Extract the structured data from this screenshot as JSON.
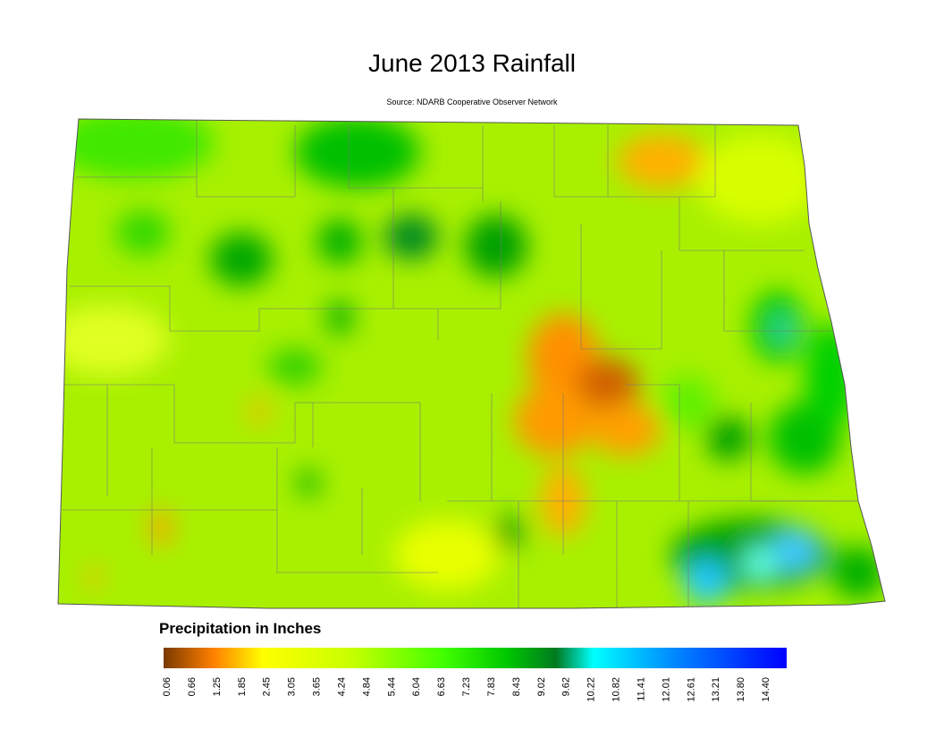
{
  "title": "June 2013 Rainfall",
  "subtitle": "Source: NDARB Cooperative Observer Network",
  "legend": {
    "title": "Precipitation in Inches",
    "ticks": [
      "0.06",
      "0.66",
      "1.25",
      "1.85",
      "2.45",
      "3.05",
      "3.65",
      "4.24",
      "4.84",
      "5.44",
      "6.04",
      "6.63",
      "7.23",
      "7.83",
      "8.43",
      "9.02",
      "9.62",
      "10.22",
      "10.82",
      "11.41",
      "12.01",
      "12.61",
      "13.21",
      "13.80",
      "14.40"
    ]
  }
}
